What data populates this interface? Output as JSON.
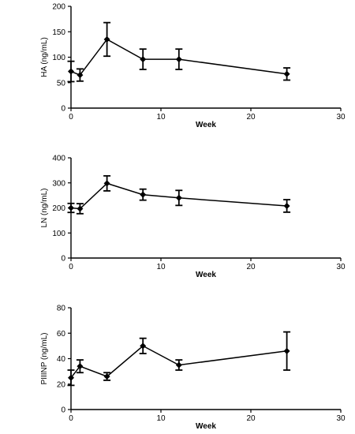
{
  "chart_data": [
    {
      "type": "line",
      "ylabel": "HA (ng/mL)",
      "xlabel": "Week",
      "xlim": [
        0,
        30
      ],
      "ylim": [
        0,
        200
      ],
      "xticks": [
        0,
        10,
        20,
        30
      ],
      "yticks": [
        0,
        50,
        100,
        150,
        200
      ],
      "grid": false,
      "x": [
        0,
        1,
        4,
        8,
        12,
        24
      ],
      "series": [
        {
          "values": [
            72,
            65,
            135,
            96,
            96,
            67
          ],
          "errors": [
            20,
            12,
            33,
            20,
            20,
            12
          ]
        }
      ]
    },
    {
      "type": "line",
      "ylabel": "LN (ng/mL)",
      "xlabel": "Week",
      "xlim": [
        0,
        30
      ],
      "ylim": [
        0,
        400
      ],
      "xticks": [
        0,
        10,
        20,
        30
      ],
      "yticks": [
        0,
        100,
        200,
        300,
        400
      ],
      "grid": false,
      "x": [
        0,
        1,
        4,
        8,
        12,
        24
      ],
      "series": [
        {
          "values": [
            200,
            197,
            298,
            253,
            240,
            208
          ],
          "errors": [
            18,
            20,
            30,
            22,
            30,
            25
          ]
        }
      ]
    },
    {
      "type": "line",
      "ylabel": "PIIINP (ng/mL)",
      "xlabel": "Week",
      "xlim": [
        0,
        30
      ],
      "ylim": [
        0,
        80
      ],
      "xticks": [
        0,
        10,
        20,
        30
      ],
      "yticks": [
        0,
        20,
        40,
        60,
        80
      ],
      "grid": false,
      "x": [
        0,
        1,
        4,
        8,
        12,
        24
      ],
      "series": [
        {
          "values": [
            25,
            34,
            26,
            50,
            35,
            46
          ],
          "errors": [
            6,
            5,
            3,
            6,
            4,
            15
          ]
        }
      ]
    }
  ],
  "style": {
    "line_color": "#000000",
    "marker": "diamond"
  }
}
